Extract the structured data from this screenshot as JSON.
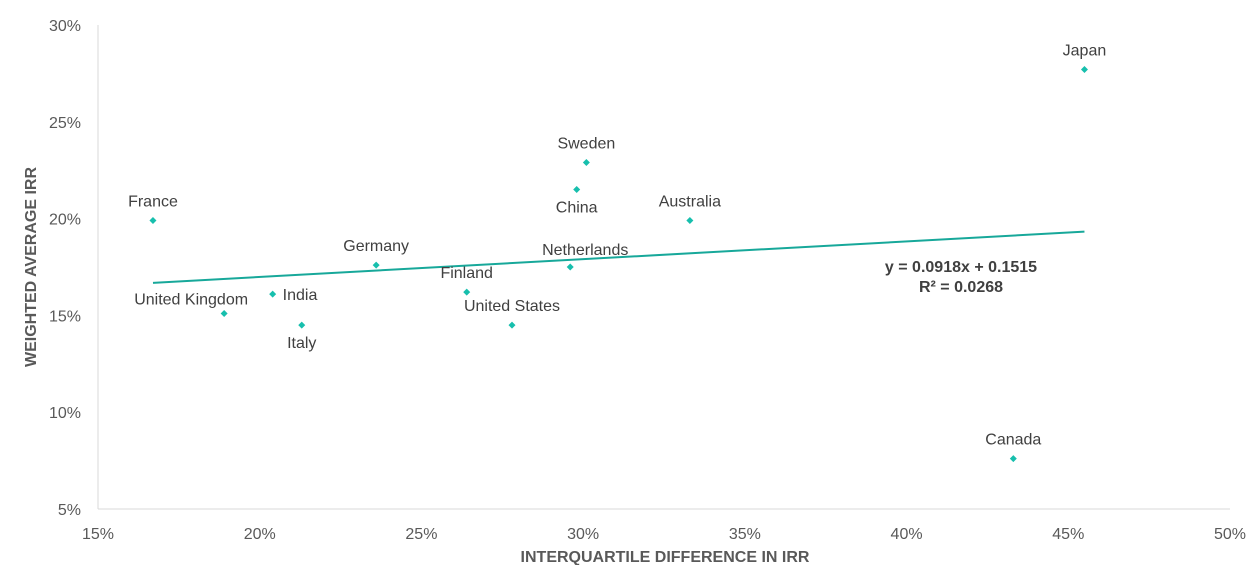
{
  "chart_data": {
    "type": "scatter",
    "title": "",
    "xlabel": "INTERQUARTILE DIFFERENCE IN IRR",
    "ylabel": "WEIGHTED AVERAGE IRR",
    "xlim": [
      0.15,
      0.5
    ],
    "ylim": [
      0.05,
      0.3
    ],
    "x_ticks": [
      0.15,
      0.2,
      0.25,
      0.3,
      0.35,
      0.4,
      0.45,
      0.5
    ],
    "x_tick_labels": [
      "15%",
      "20%",
      "25%",
      "30%",
      "35%",
      "40%",
      "45%",
      "50%"
    ],
    "y_ticks": [
      0.05,
      0.1,
      0.15,
      0.2,
      0.25,
      0.3
    ],
    "y_tick_labels": [
      "5%",
      "10%",
      "15%",
      "20%",
      "25%",
      "30%"
    ],
    "grid": false,
    "marker_color": "#17BFAD",
    "trendline_color": "#17A89A",
    "axis_color": "#D9D9D9",
    "points": [
      {
        "label": "France",
        "x": 0.167,
        "y": 0.199,
        "label_pos": "above"
      },
      {
        "label": "United Kingdom",
        "x": 0.189,
        "y": 0.151,
        "label_pos": "above-left"
      },
      {
        "label": "India",
        "x": 0.204,
        "y": 0.161,
        "label_pos": "right"
      },
      {
        "label": "Italy",
        "x": 0.213,
        "y": 0.145,
        "label_pos": "below"
      },
      {
        "label": "Germany",
        "x": 0.236,
        "y": 0.176,
        "label_pos": "above"
      },
      {
        "label": "Finland",
        "x": 0.264,
        "y": 0.162,
        "label_pos": "above"
      },
      {
        "label": "United States",
        "x": 0.278,
        "y": 0.145,
        "label_pos": "above"
      },
      {
        "label": "Netherlands",
        "x": 0.296,
        "y": 0.175,
        "label_pos": "above-right"
      },
      {
        "label": "China",
        "x": 0.298,
        "y": 0.215,
        "label_pos": "below"
      },
      {
        "label": "Sweden",
        "x": 0.301,
        "y": 0.229,
        "label_pos": "above"
      },
      {
        "label": "Australia",
        "x": 0.333,
        "y": 0.199,
        "label_pos": "above"
      },
      {
        "label": "Canada",
        "x": 0.433,
        "y": 0.076,
        "label_pos": "above"
      },
      {
        "label": "Japan",
        "x": 0.455,
        "y": 0.277,
        "label_pos": "above"
      }
    ],
    "trendline": {
      "slope": 0.0918,
      "intercept": 0.1515,
      "x_range": [
        0.167,
        0.455
      ],
      "equation": "y = 0.0918x + 0.1515",
      "r_squared": "R² = 0.0268"
    }
  }
}
